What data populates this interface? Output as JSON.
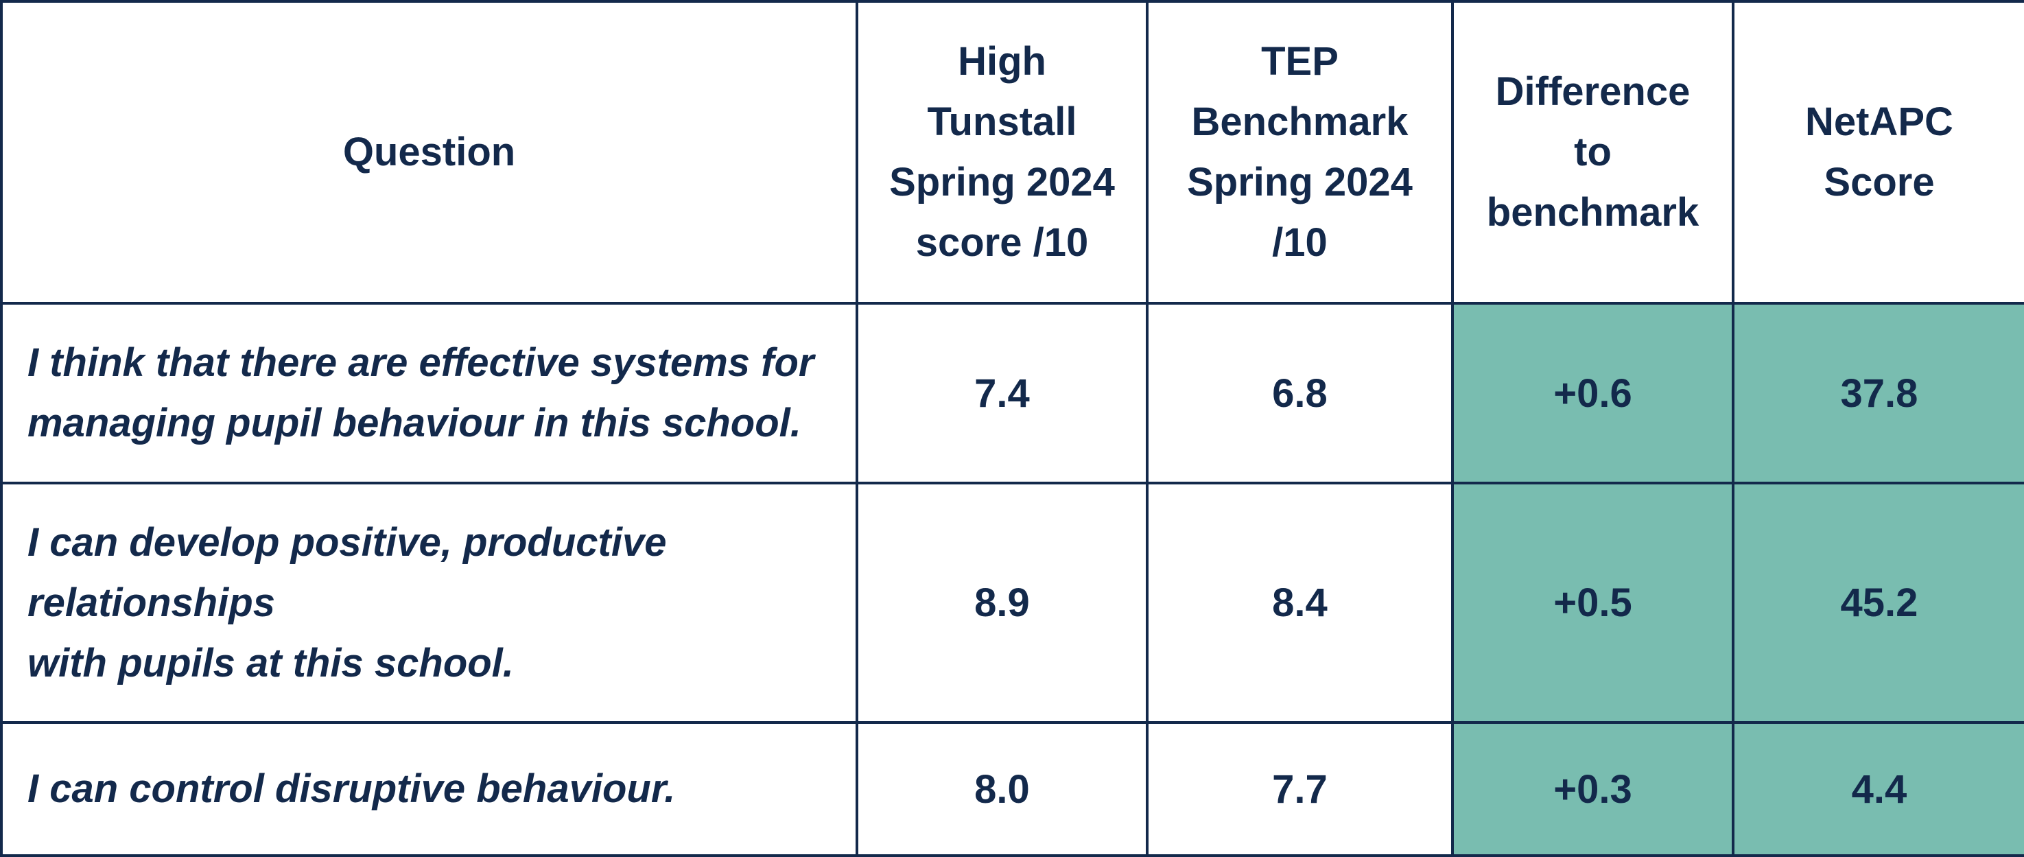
{
  "table": {
    "headers": [
      "Question",
      "High\nTunstall\nSpring 2024\nscore /10",
      "TEP\nBenchmark\nSpring 2024\n/10",
      "Difference\nto\nbenchmark",
      "NetAPC\nScore"
    ],
    "rows": [
      {
        "question": "I think that there are effective systems for\n  managing pupil behaviour in this school.",
        "school_score": "7.4",
        "benchmark": "6.8",
        "difference": "+0.6",
        "netapc": "37.8"
      },
      {
        "question": "I can develop positive, productive\nrelationships\n  with pupils at this school.",
        "school_score": "8.9",
        "benchmark": "8.4",
        "difference": "+0.5",
        "netapc": "45.2"
      },
      {
        "question": "I can control disruptive behaviour.",
        "school_score": "8.0",
        "benchmark": "7.7",
        "difference": "+0.3",
        "netapc": "4.4"
      }
    ],
    "colors": {
      "text": "#13294b",
      "border": "#13294b",
      "highlight": "#79bdb0",
      "background": "#ffffff"
    }
  }
}
